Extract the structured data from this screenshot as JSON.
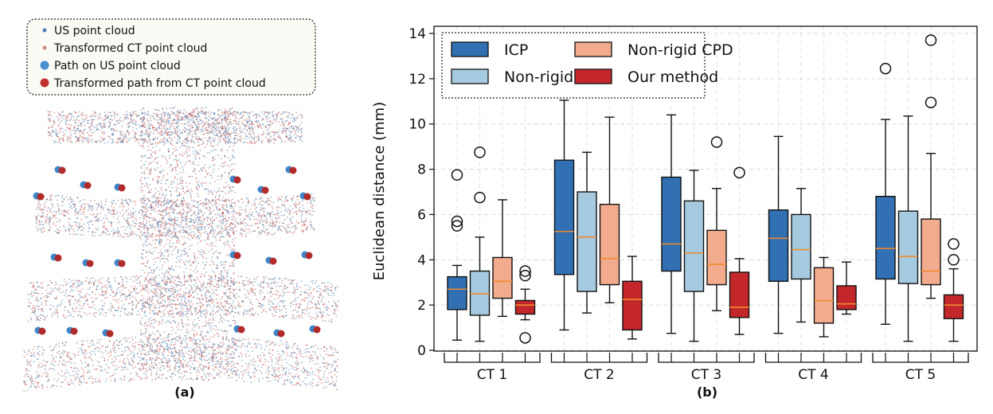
{
  "panel_a": {
    "label": "(a)",
    "legend": [
      {
        "label": "US point cloud",
        "color": "#4a7fb5",
        "marker": "small"
      },
      {
        "label": "Transformed CT point cloud",
        "color": "#c98a7a",
        "marker": "small"
      },
      {
        "label": "Path on US point cloud",
        "color": "#4a8fd0",
        "marker": "large"
      },
      {
        "label": "Transformed path from CT point cloud",
        "color": "#c03030",
        "marker": "large"
      }
    ]
  },
  "panel_b": {
    "label": "(b)"
  },
  "chart_data": {
    "type": "box",
    "ylabel": "Euclidean distance (mm)",
    "xlabel": "",
    "ylim": [
      0,
      14
    ],
    "yticks": [
      0,
      2,
      4,
      6,
      8,
      10,
      12,
      14
    ],
    "grid": true,
    "legend_position": "top-left",
    "categories": [
      "CT 1",
      "CT 2",
      "CT 3",
      "CT 4",
      "CT 5"
    ],
    "series": [
      {
        "name": "ICP",
        "color": "#3070b3",
        "boxes": [
          {
            "min": 0.45,
            "q1": 1.8,
            "median": 2.7,
            "q3": 3.25,
            "max": 3.75,
            "outliers": [
              5.5,
              5.7,
              7.75
            ]
          },
          {
            "min": 0.9,
            "q1": 3.35,
            "median": 5.25,
            "q3": 8.4,
            "max": 11.05,
            "outliers": []
          },
          {
            "min": 0.75,
            "q1": 3.5,
            "median": 4.7,
            "q3": 7.65,
            "max": 10.4,
            "outliers": []
          },
          {
            "min": 0.75,
            "q1": 3.05,
            "median": 4.95,
            "q3": 6.2,
            "max": 9.45,
            "outliers": []
          },
          {
            "min": 1.15,
            "q1": 3.15,
            "median": 4.5,
            "q3": 6.8,
            "max": 10.2,
            "outliers": [
              12.45
            ]
          }
        ]
      },
      {
        "name": "Non-rigid ICP",
        "color": "#a6cbe0",
        "boxes": [
          {
            "min": 0.4,
            "q1": 1.55,
            "median": 2.5,
            "q3": 3.5,
            "max": 5.0,
            "outliers": [
              6.75,
              8.75
            ]
          },
          {
            "min": 1.65,
            "q1": 2.6,
            "median": 5.0,
            "q3": 7.0,
            "max": 8.75,
            "outliers": []
          },
          {
            "min": 0.4,
            "q1": 2.6,
            "median": 4.3,
            "q3": 6.6,
            "max": 7.95,
            "outliers": []
          },
          {
            "min": 1.25,
            "q1": 3.15,
            "median": 4.45,
            "q3": 6.0,
            "max": 7.15,
            "outliers": []
          },
          {
            "min": 0.4,
            "q1": 2.95,
            "median": 4.15,
            "q3": 6.15,
            "max": 10.35,
            "outliers": []
          }
        ]
      },
      {
        "name": "Non-rigid CPD",
        "color": "#f3ab8e",
        "boxes": [
          {
            "min": 1.5,
            "q1": 2.3,
            "median": 3.05,
            "q3": 4.1,
            "max": 6.65,
            "outliers": []
          },
          {
            "min": 2.1,
            "q1": 2.9,
            "median": 4.05,
            "q3": 6.45,
            "max": 10.3,
            "outliers": []
          },
          {
            "min": 1.75,
            "q1": 2.9,
            "median": 3.8,
            "q3": 5.3,
            "max": 7.15,
            "outliers": [
              9.2
            ]
          },
          {
            "min": 0.6,
            "q1": 1.2,
            "median": 2.2,
            "q3": 3.65,
            "max": 4.1,
            "outliers": []
          },
          {
            "min": 2.3,
            "q1": 2.9,
            "median": 3.5,
            "q3": 5.8,
            "max": 8.7,
            "outliers": [
              10.95,
              13.7
            ]
          }
        ]
      },
      {
        "name": "Our method",
        "color": "#c3272b",
        "boxes": [
          {
            "min": 1.35,
            "q1": 1.6,
            "median": 2.0,
            "q3": 2.2,
            "max": 2.7,
            "outliers": [
              0.55,
              3.3,
              3.5
            ]
          },
          {
            "min": 0.5,
            "q1": 0.9,
            "median": 2.25,
            "q3": 3.05,
            "max": 4.15,
            "outliers": []
          },
          {
            "min": 0.7,
            "q1": 1.45,
            "median": 1.9,
            "q3": 3.45,
            "max": 4.05,
            "outliers": [
              7.85
            ]
          },
          {
            "min": 1.6,
            "q1": 1.8,
            "median": 2.05,
            "q3": 2.85,
            "max": 3.9,
            "outliers": []
          },
          {
            "min": 0.4,
            "q1": 1.4,
            "median": 2.0,
            "q3": 2.45,
            "max": 3.6,
            "outliers": [
              4.0,
              4.7
            ]
          }
        ]
      }
    ]
  }
}
